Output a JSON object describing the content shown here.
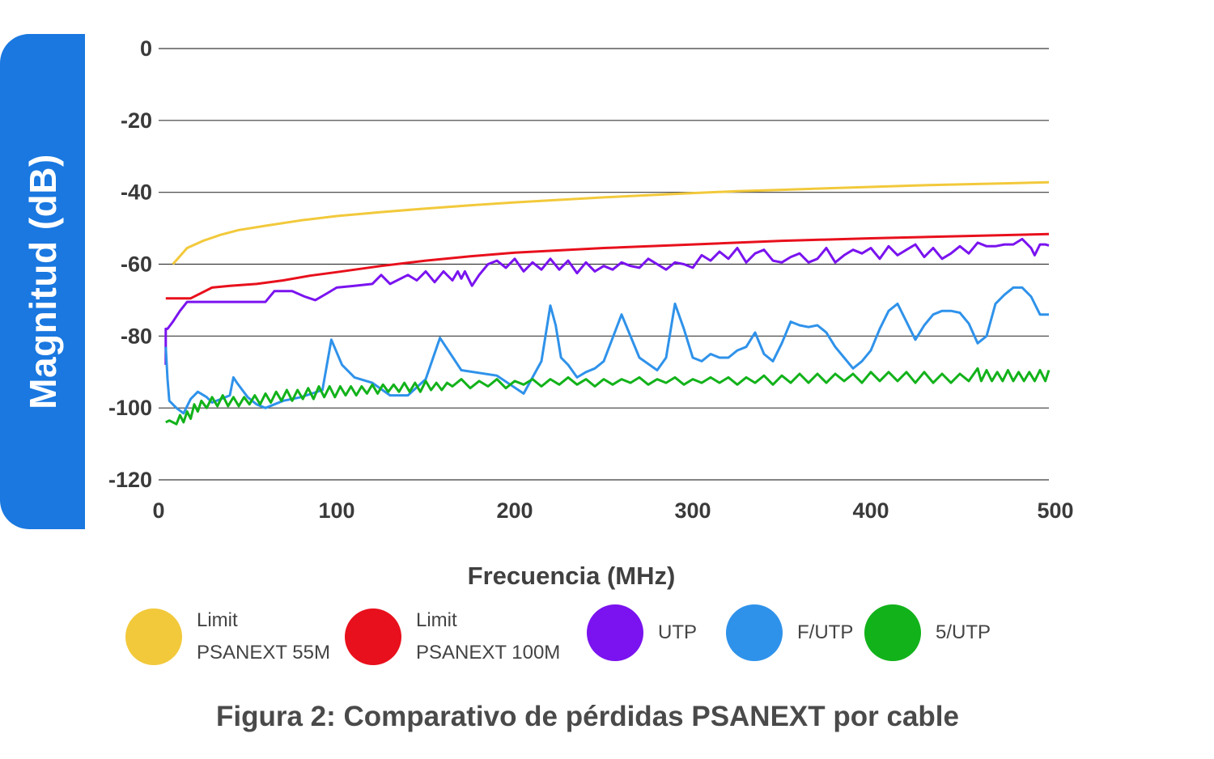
{
  "colors": {
    "label_box": "#1a78e0",
    "grid": "#3a3a3a",
    "limit_55m": "#f2c93b",
    "limit_100m": "#e8101c",
    "utp": "#7a13ef",
    "futp": "#2f92ea",
    "sutp": "#12b21a"
  },
  "caption": "Figura 2: Comparativo de pérdidas PSANEXT por cable",
  "chart_data": {
    "type": "line",
    "title": "",
    "xlabel": "Frecuencia (MHz)",
    "ylabel": "Magnitud (dB)",
    "xlim": [
      0,
      500
    ],
    "ylim": [
      -120,
      0
    ],
    "xticks": [
      0,
      100,
      200,
      300,
      400,
      500
    ],
    "yticks": [
      0,
      -20,
      -40,
      -60,
      -80,
      -100,
      -120
    ],
    "grid": "horizontal",
    "legend_position": "bottom",
    "series": [
      {
        "name": "Limit PSANEXT 55M",
        "legend_label": "Limit\nPSANEXT 55M",
        "color": "#f2c93b",
        "x": [
          8,
          16,
          25,
          35,
          45,
          60,
          80,
          100,
          125,
          150,
          175,
          200,
          225,
          250,
          275,
          300,
          325,
          350,
          375,
          400,
          425,
          450,
          475,
          500
        ],
        "y": [
          -60,
          -55.5,
          -53.5,
          -51.8,
          -50.5,
          -49.3,
          -47.8,
          -46.6,
          -45.5,
          -44.5,
          -43.6,
          -42.8,
          -42.1,
          -41.4,
          -40.8,
          -40.2,
          -39.7,
          -39.3,
          -38.9,
          -38.5,
          -38.1,
          -37.8,
          -37.5,
          -37.2
        ]
      },
      {
        "name": "Limit PSANEXT 100M",
        "legend_label": "Limit\nPSANEXT 100M",
        "color": "#e8101c",
        "x": [
          4,
          18,
          30,
          40,
          55,
          70,
          85,
          100,
          125,
          150,
          175,
          200,
          250,
          300,
          350,
          400,
          450,
          500
        ],
        "y": [
          -69.5,
          -69.5,
          -66.5,
          -66,
          -65.5,
          -64.5,
          -63.2,
          -62.2,
          -60.5,
          -59,
          -57.8,
          -56.8,
          -55.5,
          -54.5,
          -53.5,
          -52.8,
          -52.2,
          -51.6
        ]
      },
      {
        "name": "UTP",
        "legend_label": "UTP",
        "color": "#7a13ef",
        "x": [
          4,
          4,
          5,
          8,
          12,
          16,
          20,
          30,
          40,
          50,
          60,
          65,
          70,
          75,
          82,
          88,
          95,
          100,
          110,
          120,
          125,
          130,
          140,
          145,
          150,
          155,
          160,
          165,
          168,
          170,
          172,
          176,
          180,
          185,
          190,
          195,
          200,
          205,
          210,
          215,
          220,
          225,
          230,
          235,
          240,
          245,
          250,
          255,
          260,
          265,
          270,
          275,
          280,
          285,
          290,
          295,
          300,
          305,
          310,
          315,
          320,
          325,
          330,
          335,
          340,
          345,
          350,
          355,
          360,
          365,
          370,
          375,
          380,
          385,
          390,
          395,
          400,
          405,
          410,
          415,
          420,
          425,
          430,
          435,
          440,
          445,
          450,
          455,
          460,
          465,
          470,
          475,
          480,
          485,
          490,
          492,
          495,
          498,
          500
        ],
        "y": [
          -88,
          -78,
          -78,
          -76,
          -73,
          -70.5,
          -70.5,
          -70.5,
          -70.5,
          -70.5,
          -70.5,
          -67.5,
          -67.5,
          -67.5,
          -69,
          -70,
          -68,
          -66.5,
          -66,
          -65.5,
          -63,
          -65.5,
          -63,
          -64.5,
          -62,
          -65,
          -62,
          -64.5,
          -62,
          -64,
          -62,
          -66,
          -63,
          -60,
          -59,
          -61,
          -58.5,
          -62,
          -59.5,
          -61.5,
          -58.5,
          -61.5,
          -59,
          -62.5,
          -59.5,
          -62,
          -60.5,
          -61.5,
          -59.5,
          -60.5,
          -61,
          -58.5,
          -60,
          -61.5,
          -59.5,
          -60,
          -61,
          -57.5,
          -59,
          -56.5,
          -58.5,
          -55.5,
          -59.5,
          -57,
          -56,
          -59,
          -59.5,
          -58,
          -57,
          -59.5,
          -58.5,
          -55.5,
          -59.5,
          -57.5,
          -56,
          -57,
          -55.5,
          -58.5,
          -55,
          -57.5,
          -56,
          -54.5,
          -58,
          -55.5,
          -58.5,
          -57,
          -55,
          -57,
          -54,
          -55,
          -55,
          -54.5,
          -54.5,
          -53,
          -55.5,
          -57.5,
          -54.5,
          -54.5,
          -54.8
        ]
      },
      {
        "name": "F/UTP",
        "legend_label": "F/UTP",
        "color": "#2f92ea",
        "x": [
          4,
          5,
          6,
          10,
          14,
          18,
          22,
          27,
          30,
          35,
          40,
          42,
          44,
          47,
          50,
          55,
          60,
          70,
          80,
          92,
          97,
          103,
          110,
          120,
          130,
          140,
          150,
          158,
          170,
          190,
          205,
          215,
          220,
          223,
          226,
          230,
          235,
          240,
          245,
          250,
          260,
          270,
          280,
          285,
          290,
          295,
          300,
          305,
          310,
          315,
          320,
          325,
          330,
          335,
          340,
          345,
          350,
          355,
          360,
          365,
          370,
          375,
          380,
          385,
          390,
          395,
          400,
          405,
          410,
          415,
          420,
          425,
          430,
          435,
          440,
          445,
          450,
          455,
          460,
          465,
          470,
          475,
          480,
          485,
          490,
          495,
          500
        ],
        "y": [
          -83,
          -92,
          -98,
          -100,
          -101.5,
          -97.5,
          -95.5,
          -97,
          -98.5,
          -97.5,
          -96.5,
          -91.5,
          -93,
          -95,
          -97,
          -99,
          -100,
          -98,
          -97,
          -95,
          -81,
          -88,
          -91.5,
          -93,
          -96.5,
          -96.5,
          -92,
          -80.5,
          -89.5,
          -91,
          -96,
          -87,
          -71.5,
          -77,
          -86,
          -88,
          -91.5,
          -90,
          -89,
          -87,
          -74,
          -86,
          -89.5,
          -86,
          -71,
          -78,
          -86,
          -87,
          -85,
          -86,
          -86,
          -84,
          -83,
          -79,
          -85,
          -87,
          -82,
          -76,
          -77,
          -77.5,
          -77,
          -79,
          -83,
          -86,
          -89,
          -87,
          -84,
          -78,
          -73,
          -71,
          -76,
          -81,
          -77,
          -74,
          -73,
          -73,
          -73.5,
          -76.5,
          -82,
          -80,
          -71,
          -68.5,
          -66.5,
          -66.5,
          -69,
          -74,
          -74
        ]
      },
      {
        "name": "5/UTP",
        "legend_label": "5/UTP",
        "color": "#12b21a",
        "x": [
          4,
          6,
          8,
          10,
          12,
          14,
          16,
          18,
          20,
          22,
          24,
          27,
          30,
          33,
          36,
          39,
          42,
          45,
          48,
          51,
          54,
          57,
          60,
          63,
          66,
          69,
          72,
          75,
          78,
          81,
          84,
          87,
          90,
          93,
          96,
          99,
          102,
          105,
          108,
          111,
          114,
          117,
          120,
          123,
          126,
          129,
          132,
          135,
          138,
          141,
          144,
          147,
          150,
          153,
          156,
          159,
          162,
          165,
          170,
          175,
          180,
          185,
          190,
          195,
          200,
          205,
          210,
          215,
          220,
          225,
          230,
          235,
          240,
          245,
          250,
          255,
          260,
          265,
          270,
          275,
          280,
          285,
          290,
          295,
          300,
          305,
          310,
          315,
          320,
          325,
          330,
          335,
          340,
          345,
          350,
          355,
          360,
          365,
          370,
          375,
          380,
          385,
          390,
          395,
          400,
          405,
          410,
          415,
          420,
          425,
          430,
          435,
          440,
          445,
          450,
          455,
          460,
          462,
          465,
          468,
          471,
          474,
          477,
          480,
          483,
          486,
          489,
          492,
          495,
          498,
          500
        ],
        "y": [
          -104,
          -103.5,
          -104,
          -104.5,
          -102,
          -104,
          -101,
          -103,
          -99,
          -101,
          -98,
          -100,
          -97,
          -99.5,
          -96.5,
          -99.5,
          -97,
          -99.5,
          -97,
          -99,
          -96.5,
          -99,
          -96,
          -98.5,
          -95.5,
          -98,
          -95,
          -98,
          -95,
          -97.5,
          -94.5,
          -97.5,
          -94,
          -97,
          -94,
          -97,
          -94,
          -96.5,
          -94,
          -96.5,
          -94,
          -96,
          -93.5,
          -96,
          -93.5,
          -95.5,
          -93.5,
          -95.5,
          -93,
          -95.5,
          -93,
          -95.5,
          -92.5,
          -95,
          -93,
          -95,
          -93,
          -94,
          -92,
          -94.5,
          -92.5,
          -94,
          -92,
          -94.5,
          -92.5,
          -93.5,
          -92,
          -94,
          -92,
          -93.5,
          -91.5,
          -93.5,
          -92,
          -94,
          -92,
          -93.5,
          -92,
          -93,
          -91.5,
          -93.5,
          -92,
          -93,
          -91.5,
          -93.5,
          -92,
          -93,
          -91.5,
          -93,
          -91.5,
          -93.5,
          -91.5,
          -93,
          -91,
          -93.5,
          -91,
          -93,
          -90.5,
          -93,
          -90.5,
          -93,
          -90.5,
          -92.5,
          -90.5,
          -93,
          -90,
          -92.5,
          -90,
          -92.5,
          -90,
          -93,
          -90,
          -93,
          -90.5,
          -93,
          -90.5,
          -92.5,
          -89,
          -92.5,
          -89.5,
          -92.5,
          -90,
          -92.5,
          -89.5,
          -92.5,
          -90,
          -92.5,
          -90,
          -92.5,
          -89.5,
          -92.5,
          -89.5
        ]
      }
    ]
  }
}
